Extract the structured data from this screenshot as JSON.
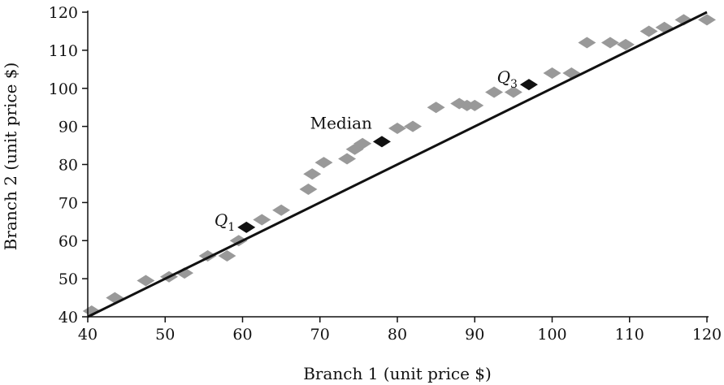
{
  "chart_data": {
    "type": "scatter",
    "title": "",
    "xlabel": "Branch 1 (unit price $)",
    "ylabel": "Branch 2 (unit price $)",
    "xlim": [
      40,
      120
    ],
    "ylim": [
      40,
      120
    ],
    "xticks": [
      40,
      50,
      60,
      70,
      80,
      90,
      100,
      110,
      120
    ],
    "yticks": [
      40,
      50,
      60,
      70,
      80,
      90,
      100,
      110,
      120
    ],
    "grid": false,
    "marker": "diamond",
    "colors": {
      "points": "#999999",
      "quartiles": "#111111",
      "line": "#111111",
      "axis": "#111111"
    },
    "reference_line": {
      "from": [
        40,
        40
      ],
      "to": [
        120,
        120
      ]
    },
    "points": [
      {
        "x": 40.5,
        "y": 41.5
      },
      {
        "x": 43.5,
        "y": 45
      },
      {
        "x": 47.5,
        "y": 49.5
      },
      {
        "x": 50.5,
        "y": 50.5
      },
      {
        "x": 52.5,
        "y": 51.5
      },
      {
        "x": 55.5,
        "y": 56
      },
      {
        "x": 58,
        "y": 56
      },
      {
        "x": 59.5,
        "y": 60
      },
      {
        "x": 62.5,
        "y": 65.5
      },
      {
        "x": 65,
        "y": 68
      },
      {
        "x": 68.5,
        "y": 73.5
      },
      {
        "x": 69,
        "y": 77.5
      },
      {
        "x": 70.5,
        "y": 80.5
      },
      {
        "x": 73.5,
        "y": 81.5
      },
      {
        "x": 74.5,
        "y": 84
      },
      {
        "x": 75.5,
        "y": 85.5
      },
      {
        "x": 80,
        "y": 89.5
      },
      {
        "x": 82,
        "y": 90
      },
      {
        "x": 85,
        "y": 95
      },
      {
        "x": 88,
        "y": 96
      },
      {
        "x": 89,
        "y": 95.5
      },
      {
        "x": 90,
        "y": 95.5
      },
      {
        "x": 92.5,
        "y": 99
      },
      {
        "x": 95,
        "y": 99
      },
      {
        "x": 100,
        "y": 104
      },
      {
        "x": 102.5,
        "y": 104
      },
      {
        "x": 104.5,
        "y": 112
      },
      {
        "x": 107.5,
        "y": 112
      },
      {
        "x": 109.5,
        "y": 111.5
      },
      {
        "x": 112.5,
        "y": 115
      },
      {
        "x": 114.5,
        "y": 116
      },
      {
        "x": 117,
        "y": 118
      },
      {
        "x": 120,
        "y": 118
      }
    ],
    "quartiles": [
      {
        "label": "Q",
        "sub": "1",
        "x": 60.5,
        "y": 63.5,
        "label_anchor": "end"
      },
      {
        "label": "Median",
        "sub": "",
        "x": 78,
        "y": 86,
        "label_anchor": "end"
      },
      {
        "label": "Q",
        "sub": "3",
        "x": 97,
        "y": 101,
        "label_anchor": "end"
      }
    ]
  }
}
